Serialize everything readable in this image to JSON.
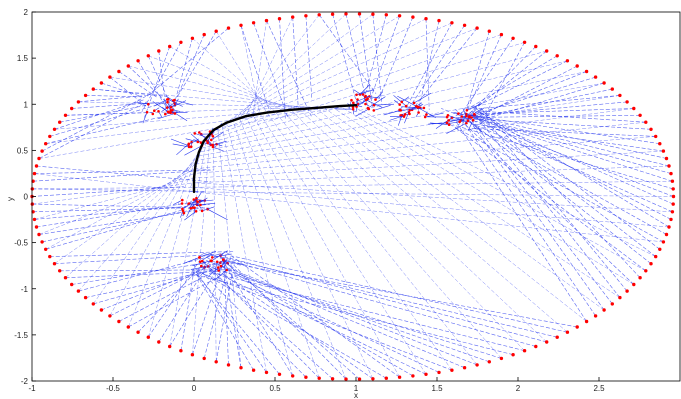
{
  "chart_data": {
    "type": "scatter",
    "title": "",
    "xlabel": "x",
    "ylabel": "y",
    "xlim": [
      -1,
      3
    ],
    "ylim": [
      -2,
      2
    ],
    "xticks": [
      -1,
      -0.5,
      0,
      0.5,
      1,
      1.5,
      2,
      2.5
    ],
    "xtick_labels": [
      "-1",
      "-0.5",
      "0",
      "0.5",
      "1",
      "1.5",
      "2",
      "2.5"
    ],
    "yticks": [
      -2,
      -1.5,
      -1,
      -0.5,
      0,
      0.5,
      1,
      1.5,
      2
    ],
    "ytick_labels": [
      "-2",
      "-1.5",
      "-1",
      "-0.5",
      "0",
      "0.5",
      "1",
      "1.5",
      "2"
    ],
    "grid": false,
    "boundary": {
      "shape": "ellipse",
      "center": [
        0.98,
        0.0
      ],
      "semi_axes": [
        1.98,
        1.98
      ],
      "marker_color": "#ff0000"
    },
    "curve": {
      "color": "#000000",
      "points": [
        [
          0.0,
          0.05
        ],
        [
          0.0,
          0.2
        ],
        [
          0.01,
          0.35
        ],
        [
          0.03,
          0.48
        ],
        [
          0.06,
          0.6
        ],
        [
          0.12,
          0.72
        ],
        [
          0.2,
          0.8
        ],
        [
          0.32,
          0.87
        ],
        [
          0.45,
          0.91
        ],
        [
          0.6,
          0.94
        ],
        [
          0.75,
          0.96
        ],
        [
          0.9,
          0.98
        ],
        [
          1.0,
          0.99
        ]
      ]
    },
    "interior_clusters": [
      {
        "center": [
          -0.2,
          0.98
        ],
        "color": "#ff0000"
      },
      {
        "center": [
          0.05,
          0.62
        ],
        "color": "#ff0000"
      },
      {
        "center": [
          0.0,
          -0.1
        ],
        "color": "#ff0000"
      },
      {
        "center": [
          0.12,
          -0.72
        ],
        "color": "#ff0000"
      },
      {
        "center": [
          1.05,
          1.02
        ],
        "color": "#ff0000"
      },
      {
        "center": [
          1.35,
          0.95
        ],
        "color": "#ff0000"
      },
      {
        "center": [
          1.65,
          0.85
        ],
        "color": "#ff0000"
      }
    ],
    "connector_color": "#2233ee"
  }
}
